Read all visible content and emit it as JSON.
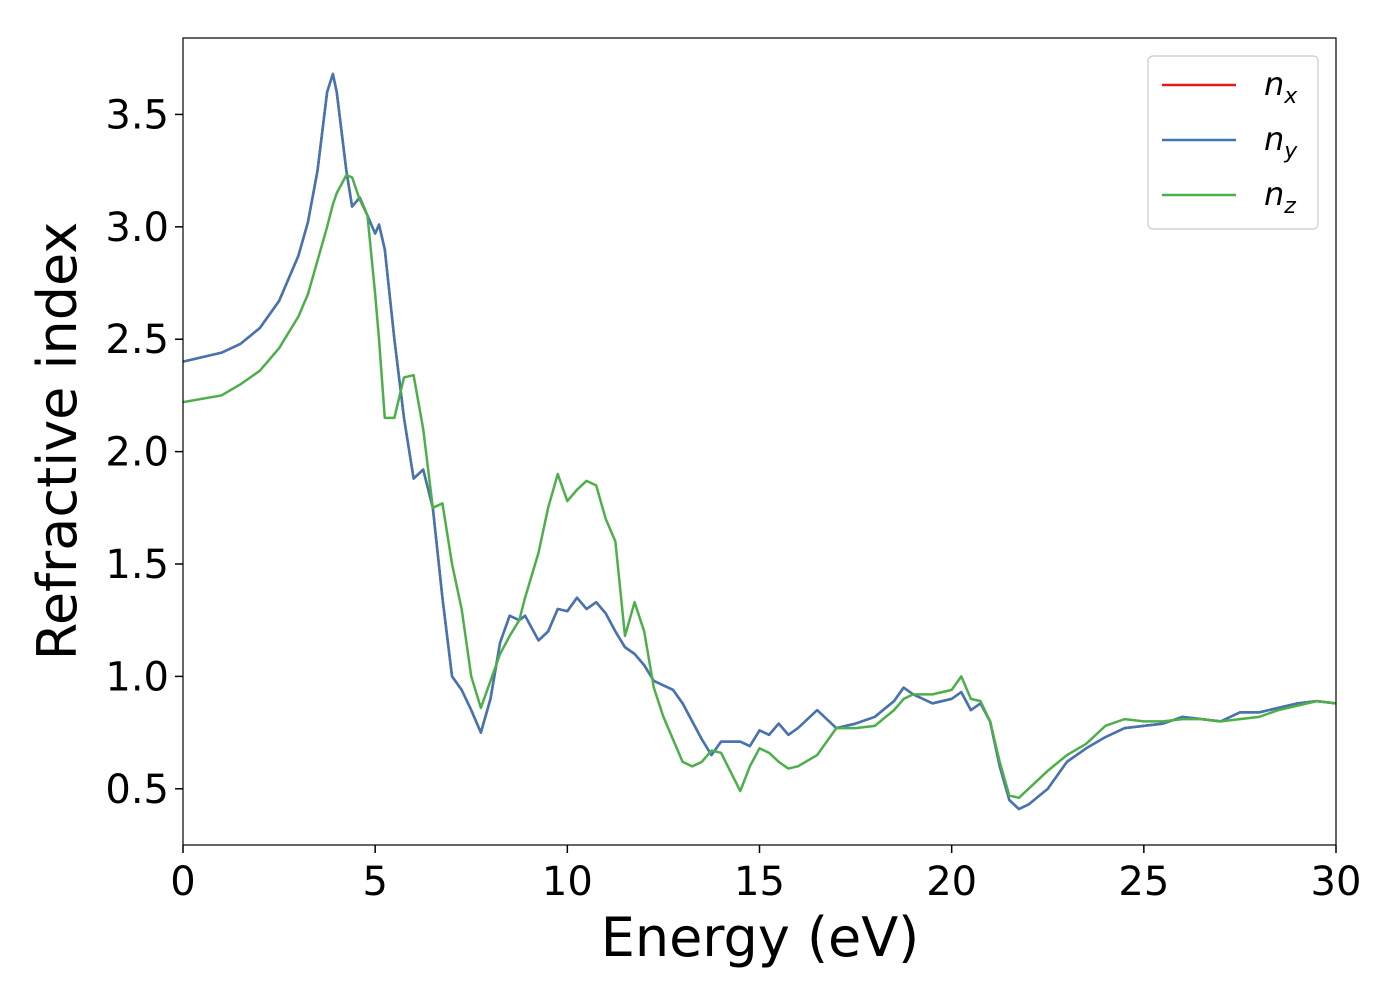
{
  "chart_data": {
    "type": "line",
    "xlabel": "Energy (eV)",
    "ylabel": "Refractive index",
    "x": [
      0,
      1,
      1.5,
      2,
      2.5,
      3,
      3.25,
      3.5,
      3.75,
      3.9,
      4,
      4.25,
      4.4,
      4.6,
      4.8,
      5,
      5.1,
      5.25,
      5.5,
      5.75,
      6,
      6.25,
      6.5,
      6.75,
      7,
      7.25,
      7.5,
      7.75,
      8,
      8.25,
      8.5,
      8.75,
      8.9,
      9.25,
      9.5,
      9.75,
      10,
      10.25,
      10.5,
      10.75,
      11,
      11.25,
      11.5,
      11.75,
      12,
      12.25,
      12.5,
      12.75,
      13,
      13.25,
      13.5,
      13.75,
      14,
      14.5,
      14.75,
      15,
      15.25,
      15.5,
      15.75,
      16,
      16.5,
      17,
      17.5,
      18,
      18.5,
      18.75,
      19,
      19.5,
      20,
      20.25,
      20.5,
      20.75,
      21,
      21.25,
      21.5,
      21.75,
      22,
      22.5,
      23,
      23.5,
      24,
      24.5,
      25,
      25.5,
      26,
      26.5,
      27,
      27.5,
      28,
      28.5,
      29,
      29.5,
      30
    ],
    "series": [
      {
        "name": "nx",
        "color": "#e41a1c",
        "values": [
          2.4,
          2.44,
          2.48,
          2.55,
          2.67,
          2.87,
          3.02,
          3.25,
          3.6,
          3.68,
          3.6,
          3.25,
          3.09,
          3.13,
          3.05,
          2.97,
          3.01,
          2.9,
          2.5,
          2.15,
          1.88,
          1.92,
          1.75,
          1.35,
          1.0,
          0.94,
          0.85,
          0.75,
          0.9,
          1.15,
          1.27,
          1.25,
          1.27,
          1.16,
          1.2,
          1.3,
          1.29,
          1.35,
          1.3,
          1.33,
          1.28,
          1.2,
          1.13,
          1.1,
          1.05,
          0.98,
          0.96,
          0.94,
          0.88,
          0.8,
          0.72,
          0.65,
          0.71,
          0.71,
          0.69,
          0.76,
          0.74,
          0.79,
          0.74,
          0.77,
          0.85,
          0.77,
          0.79,
          0.82,
          0.89,
          0.95,
          0.92,
          0.88,
          0.9,
          0.93,
          0.85,
          0.88,
          0.8,
          0.6,
          0.45,
          0.41,
          0.43,
          0.5,
          0.62,
          0.68,
          0.73,
          0.77,
          0.78,
          0.79,
          0.82,
          0.81,
          0.8,
          0.84,
          0.84,
          0.86,
          0.88,
          0.89,
          0.88
        ]
      },
      {
        "name": "ny",
        "color": "#3f77b5",
        "values": [
          2.4,
          2.44,
          2.48,
          2.55,
          2.67,
          2.87,
          3.02,
          3.25,
          3.6,
          3.68,
          3.6,
          3.25,
          3.09,
          3.13,
          3.05,
          2.97,
          3.01,
          2.9,
          2.5,
          2.15,
          1.88,
          1.92,
          1.75,
          1.35,
          1.0,
          0.94,
          0.85,
          0.75,
          0.9,
          1.15,
          1.27,
          1.25,
          1.27,
          1.16,
          1.2,
          1.3,
          1.29,
          1.35,
          1.3,
          1.33,
          1.28,
          1.2,
          1.13,
          1.1,
          1.05,
          0.98,
          0.96,
          0.94,
          0.88,
          0.8,
          0.72,
          0.65,
          0.71,
          0.71,
          0.69,
          0.76,
          0.74,
          0.79,
          0.74,
          0.77,
          0.85,
          0.77,
          0.79,
          0.82,
          0.89,
          0.95,
          0.92,
          0.88,
          0.9,
          0.93,
          0.85,
          0.88,
          0.8,
          0.6,
          0.45,
          0.41,
          0.43,
          0.5,
          0.62,
          0.68,
          0.73,
          0.77,
          0.78,
          0.79,
          0.82,
          0.81,
          0.8,
          0.84,
          0.84,
          0.86,
          0.88,
          0.89,
          0.88
        ]
      },
      {
        "name": "nz",
        "color": "#4daf4a",
        "values": [
          2.22,
          2.25,
          2.3,
          2.36,
          2.46,
          2.6,
          2.7,
          2.85,
          3.0,
          3.1,
          3.15,
          3.23,
          3.22,
          3.12,
          3.05,
          2.7,
          2.5,
          2.15,
          2.15,
          2.33,
          2.34,
          2.1,
          1.75,
          1.77,
          1.5,
          1.3,
          1.0,
          0.86,
          0.98,
          1.1,
          1.18,
          1.25,
          1.35,
          1.55,
          1.75,
          1.9,
          1.78,
          1.83,
          1.87,
          1.85,
          1.7,
          1.6,
          1.18,
          1.33,
          1.2,
          0.95,
          0.82,
          0.72,
          0.62,
          0.6,
          0.62,
          0.67,
          0.66,
          0.49,
          0.6,
          0.68,
          0.66,
          0.62,
          0.59,
          0.6,
          0.65,
          0.77,
          0.77,
          0.78,
          0.85,
          0.9,
          0.92,
          0.92,
          0.94,
          1.0,
          0.9,
          0.89,
          0.8,
          0.62,
          0.47,
          0.46,
          0.5,
          0.58,
          0.65,
          0.7,
          0.78,
          0.81,
          0.8,
          0.8,
          0.81,
          0.81,
          0.8,
          0.81,
          0.82,
          0.85,
          0.87,
          0.89,
          0.88
        ]
      }
    ],
    "xlim": [
      0,
      30
    ],
    "xticks": [
      0,
      5,
      10,
      15,
      20,
      25,
      30
    ],
    "ylim": [
      0.25,
      3.84
    ],
    "yticks": [
      0.5,
      {
        "value": 1,
        "label": "1.0"
      },
      1.5,
      {
        "value": 2,
        "label": "2.0"
      },
      2.5,
      {
        "value": 3,
        "label": "3.0"
      },
      3.5
    ],
    "legend": "upper right"
  }
}
